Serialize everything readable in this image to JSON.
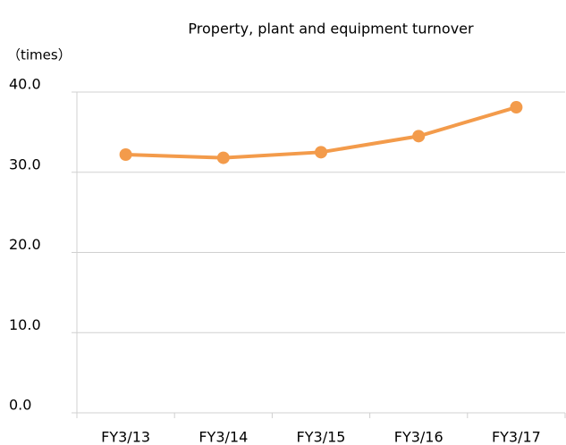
{
  "chart_data": {
    "type": "line",
    "title": "Property, plant and equipment turnover",
    "y_label": "（times）",
    "categories": [
      "FY3/13",
      "FY3/14",
      "FY3/15",
      "FY3/16",
      "FY3/17"
    ],
    "series": [
      {
        "name": "Property, plant and equipment turnover",
        "color": "#f39b4b",
        "values": [
          32.2,
          31.8,
          32.5,
          34.5,
          38.1
        ]
      }
    ],
    "ylim": [
      0,
      40
    ],
    "yticks": [
      {
        "value": 0,
        "label": "0.0"
      },
      {
        "value": 10,
        "label": "10.0"
      },
      {
        "value": 20,
        "label": "20.0"
      },
      {
        "value": 30,
        "label": "30.0"
      },
      {
        "value": 40,
        "label": "40.0"
      }
    ],
    "grid": true
  }
}
